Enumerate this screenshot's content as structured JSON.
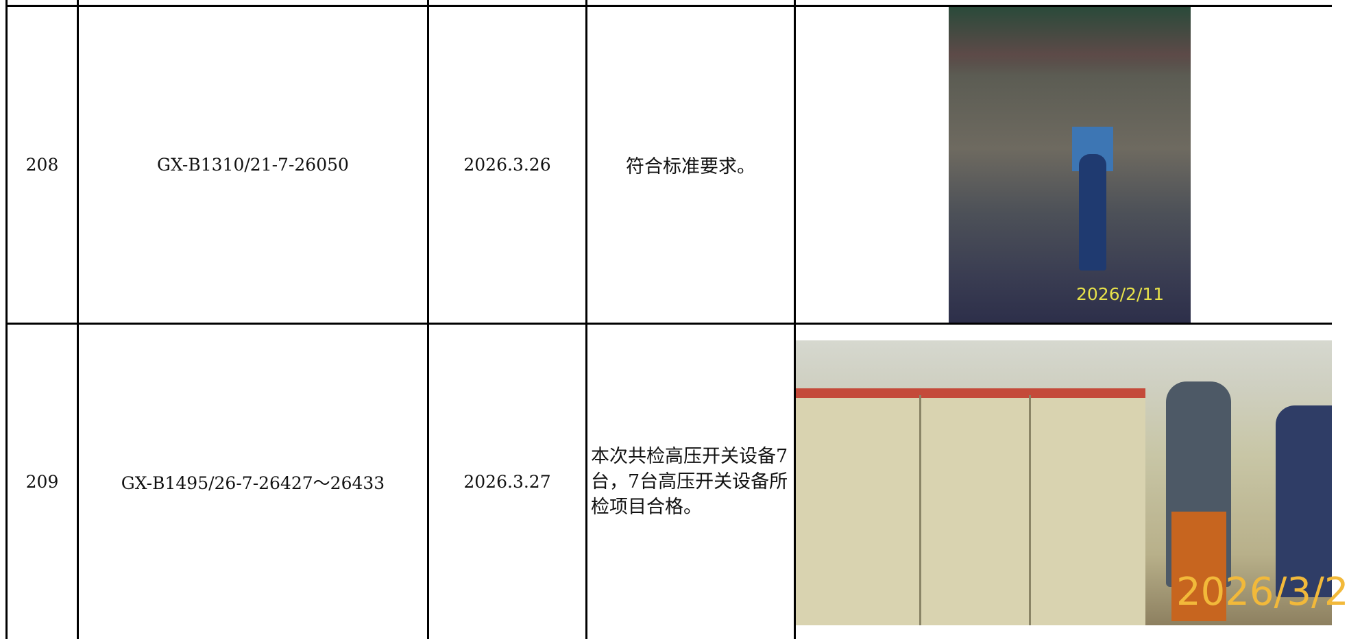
{
  "table": {
    "rows": [
      {
        "index": "208",
        "code": "GX-B1310/21-7-26050",
        "date": "2026.3.26",
        "result": "符合标准要求。",
        "photo_stamp": "2026/2/11"
      },
      {
        "index": "209",
        "code": "GX-B1495/26-7-26427～26433",
        "date": "2026.3.27",
        "result": "本次共检高压开关设备7台，7台高压开关设备所检项目合格。",
        "photo_stamp": "2026/3/2"
      }
    ]
  }
}
